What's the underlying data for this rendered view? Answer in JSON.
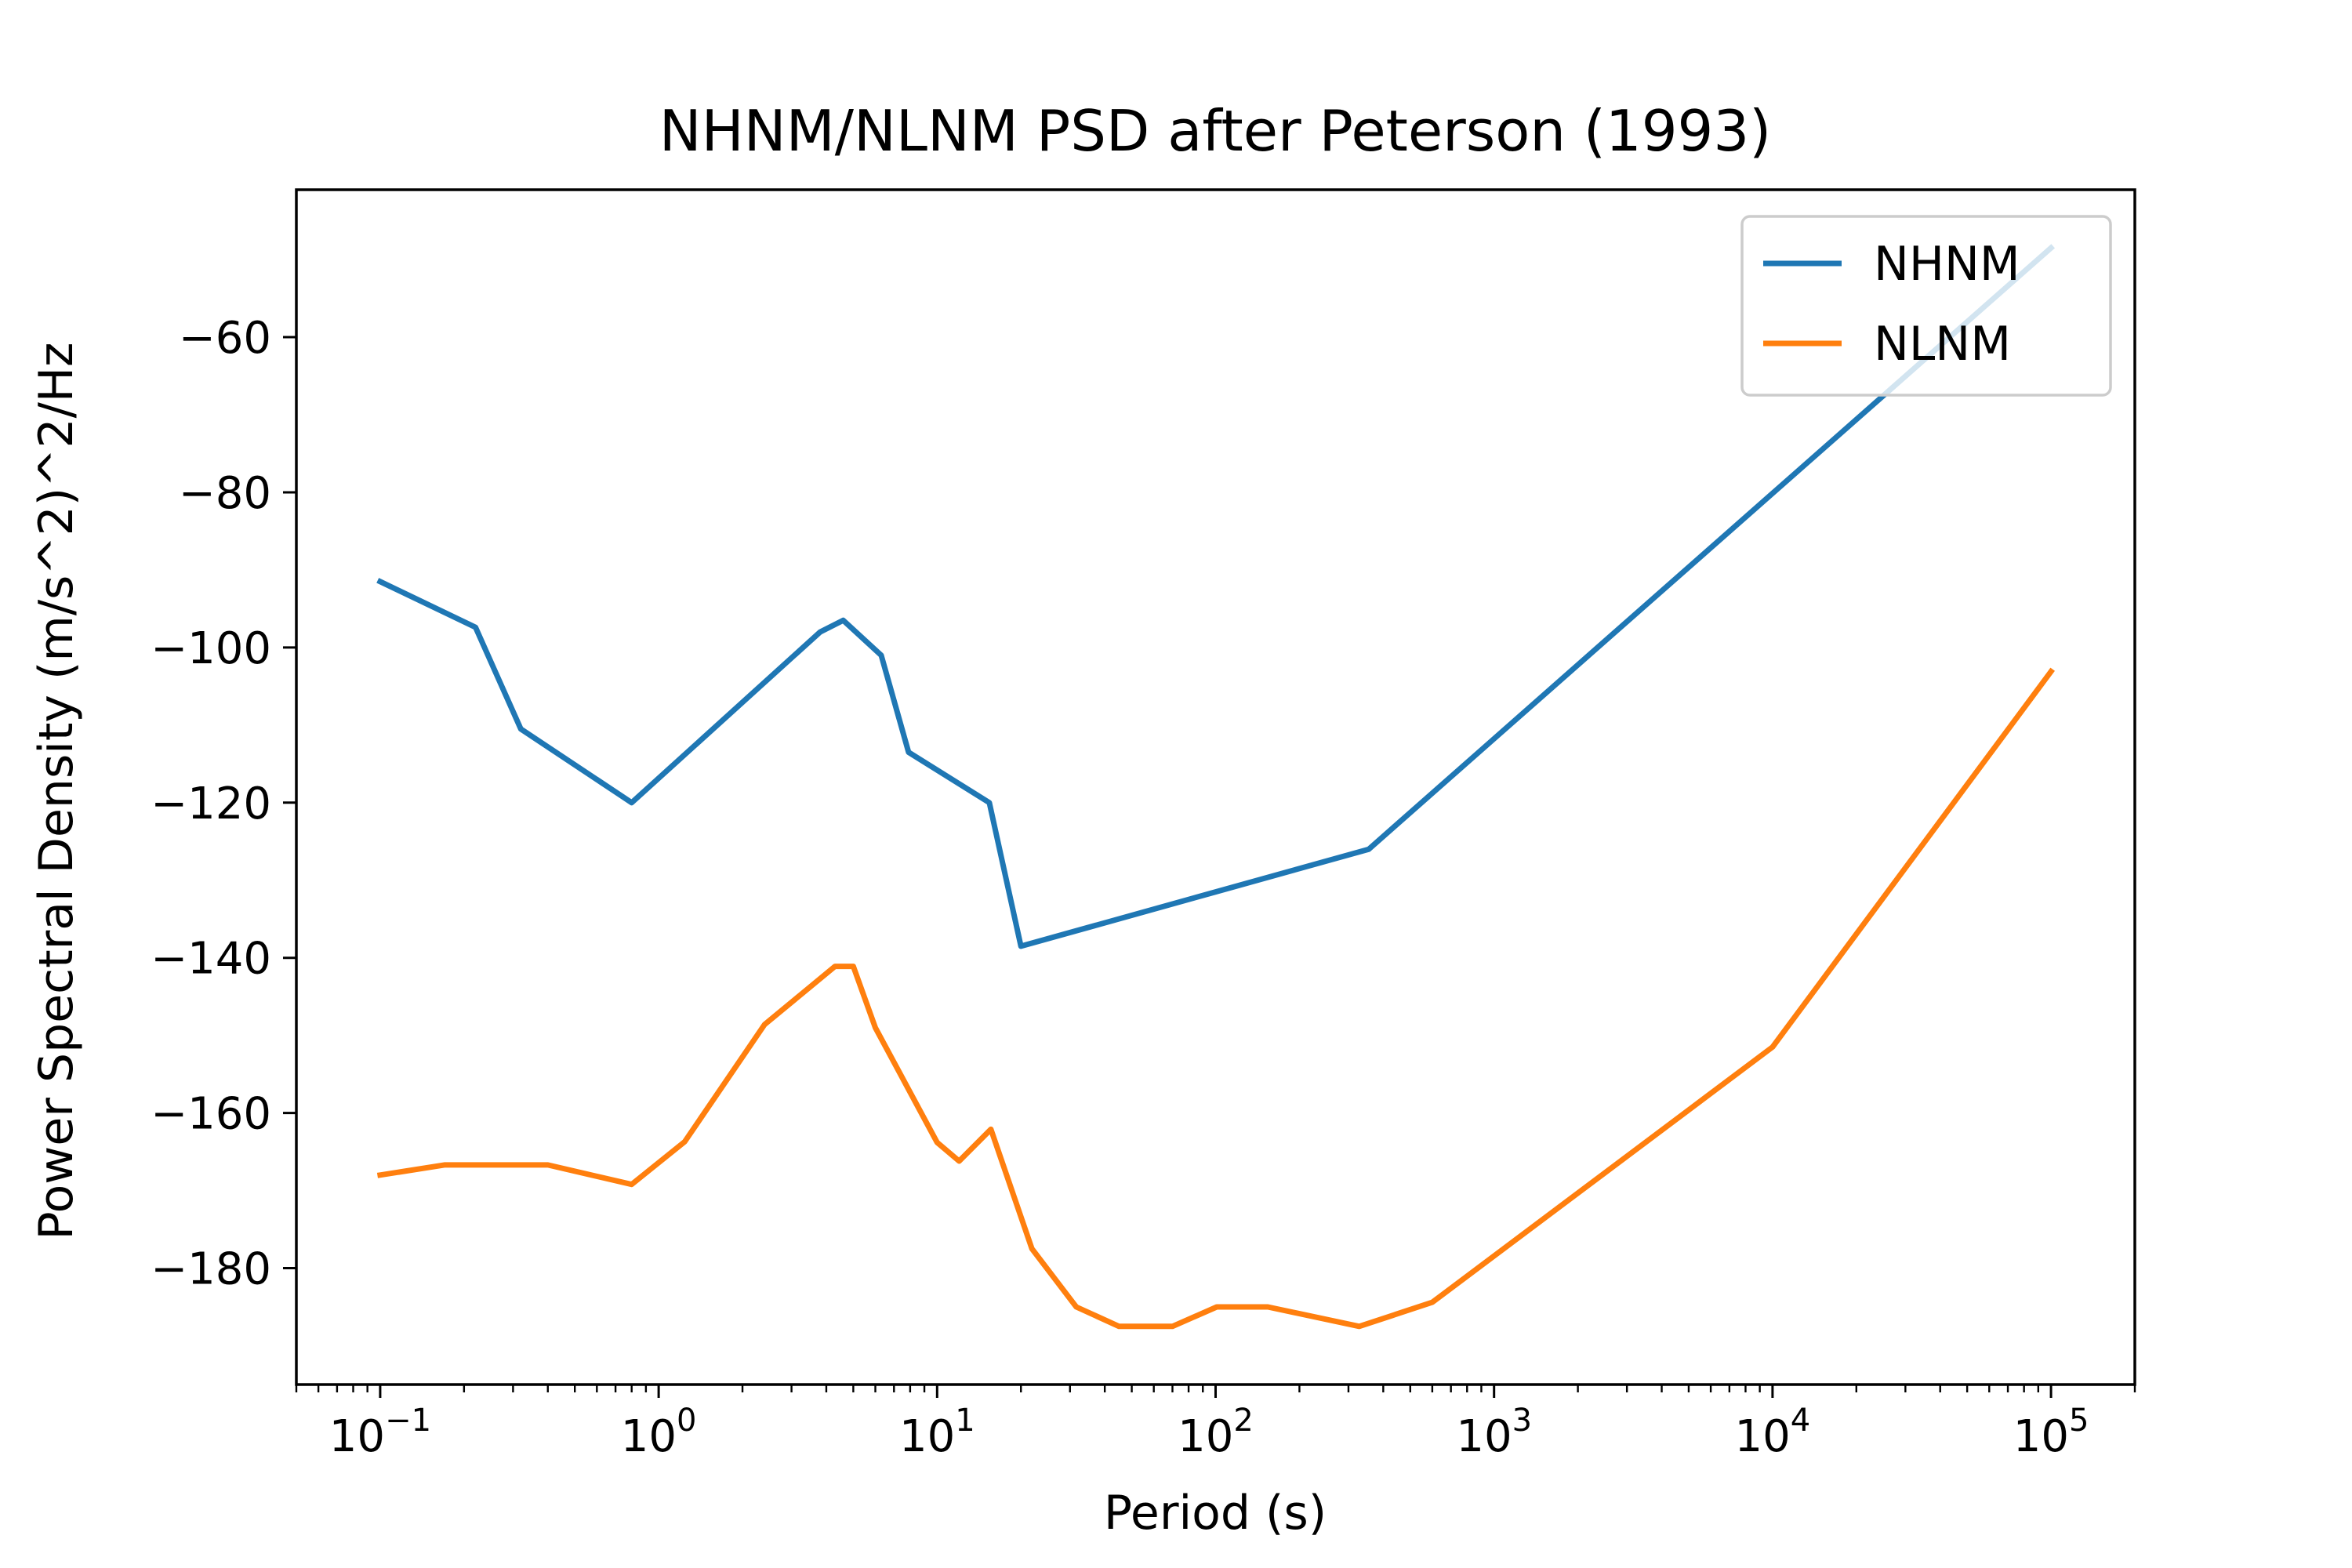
{
  "chart_data": {
    "type": "line",
    "title": "NHNM/NLNM PSD after Peterson (1993)",
    "xlabel": "Period (s)",
    "ylabel": "Power Spectral Density (m/s^2)^2/Hz",
    "xscale": "log",
    "xlim": [
      0.05,
      200000
    ],
    "ylim": [
      -195,
      -41
    ],
    "xticks": [
      {
        "base": "10",
        "exp": "−1",
        "value": 0.1
      },
      {
        "base": "10",
        "exp": "0",
        "value": 1
      },
      {
        "base": "10",
        "exp": "1",
        "value": 10
      },
      {
        "base": "10",
        "exp": "2",
        "value": 100
      },
      {
        "base": "10",
        "exp": "3",
        "value": 1000
      },
      {
        "base": "10",
        "exp": "4",
        "value": 10000
      },
      {
        "base": "10",
        "exp": "5",
        "value": 100000
      }
    ],
    "yticks": [
      {
        "label": "−60",
        "value": -60
      },
      {
        "label": "−80",
        "value": -80
      },
      {
        "label": "−100",
        "value": -100
      },
      {
        "label": "−120",
        "value": -120
      },
      {
        "label": "−140",
        "value": -140
      },
      {
        "label": "−160",
        "value": -160
      },
      {
        "label": "−180",
        "value": -180
      }
    ],
    "grid": false,
    "legend_position": "top-right",
    "series": [
      {
        "name": "NHNM",
        "color": "#1f77b4",
        "x": [
          0.1,
          0.22,
          0.32,
          0.8,
          3.8,
          4.6,
          6.3,
          7.9,
          15.4,
          20,
          354.8,
          100000
        ],
        "y": [
          -91.5,
          -97.4,
          -110.5,
          -120,
          -98,
          -96.5,
          -101,
          -113.5,
          -120,
          -138.5,
          -126,
          -48.5
        ]
      },
      {
        "name": "NLNM",
        "color": "#ff7f0e",
        "x": [
          0.1,
          0.17,
          0.4,
          0.8,
          1.24,
          2.4,
          4.3,
          5,
          6,
          10,
          12,
          15.6,
          21.9,
          31.6,
          45,
          70,
          101,
          154,
          328,
          600,
          10000,
          100000
        ],
        "y": [
          -168,
          -166.7,
          -166.7,
          -169.2,
          -163.7,
          -148.6,
          -141.1,
          -141.1,
          -149,
          -163.8,
          -166.2,
          -162.1,
          -177.5,
          -185,
          -187.5,
          -187.5,
          -185,
          -185,
          -187.5,
          -184.4,
          -151.5,
          -103.1
        ]
      }
    ]
  }
}
